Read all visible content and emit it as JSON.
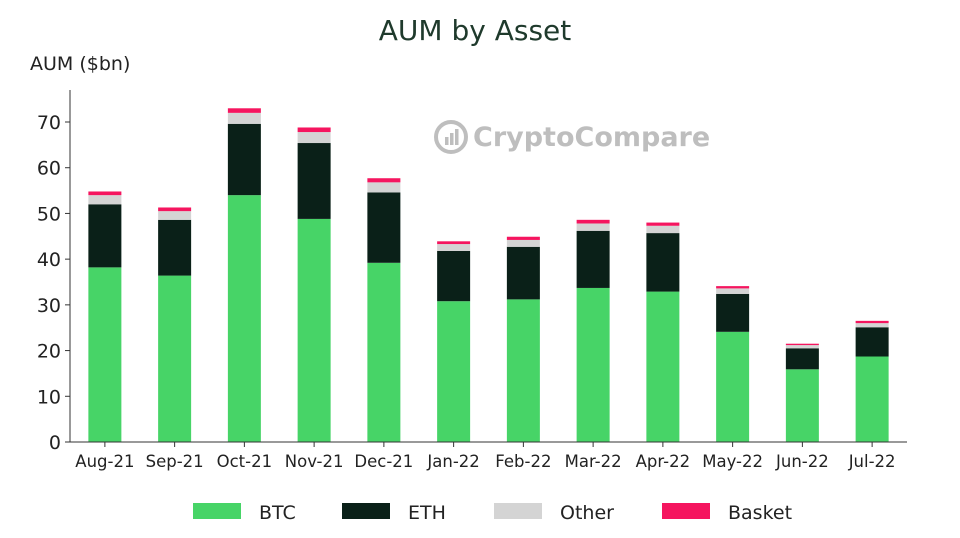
{
  "chart_data": {
    "type": "bar",
    "stacked": true,
    "title": "AUM by Asset",
    "ylabel": "AUM ($bn)",
    "xlabel": "",
    "ylim": [
      0,
      77
    ],
    "yticks": [
      0,
      10,
      20,
      30,
      40,
      50,
      60,
      70
    ],
    "categories": [
      "Aug-21",
      "Sep-21",
      "Oct-21",
      "Nov-21",
      "Dec-21",
      "Jan-22",
      "Feb-22",
      "Mar-22",
      "Apr-22",
      "May-22",
      "Jun-22",
      "Jul-22"
    ],
    "series": [
      {
        "name": "BTC",
        "color": "#47d467",
        "values": [
          38.2,
          36.4,
          54.0,
          48.8,
          39.2,
          30.8,
          31.2,
          33.7,
          32.9,
          24.1,
          15.9,
          18.7
        ]
      },
      {
        "name": "ETH",
        "color": "#0a2018",
        "values": [
          13.8,
          12.2,
          15.6,
          16.6,
          15.4,
          11.0,
          11.5,
          12.5,
          12.8,
          8.3,
          4.6,
          6.4
        ]
      },
      {
        "name": "Other",
        "color": "#d4d4d4",
        "values": [
          2.0,
          1.9,
          2.4,
          2.4,
          2.2,
          1.5,
          1.5,
          1.6,
          1.6,
          1.2,
          0.7,
          0.9
        ]
      },
      {
        "name": "Basket",
        "color": "#f5155f",
        "values": [
          0.8,
          0.8,
          1.0,
          1.0,
          0.9,
          0.6,
          0.7,
          0.8,
          0.7,
          0.5,
          0.3,
          0.5
        ]
      }
    ],
    "grid": false,
    "legend_position": "bottom"
  },
  "watermark": {
    "text": "CryptoCompare",
    "icon": "cryptocompare-logo-icon"
  }
}
